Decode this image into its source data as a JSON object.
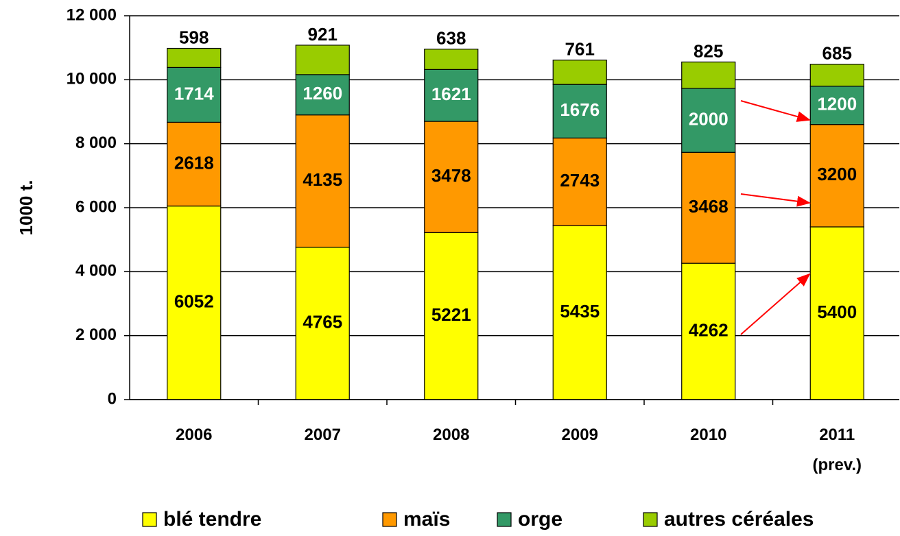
{
  "chart_data": {
    "type": "stacked_bar",
    "y_label": "1000 t.",
    "categories": [
      "2006",
      "2007",
      "2008",
      "2009",
      "2010",
      "2011\n(prev.)"
    ],
    "series": [
      {
        "name": "blé tendre",
        "color": "#ffff00",
        "label_color": "#000000",
        "values": [
          6052,
          4765,
          5221,
          5435,
          4262,
          5400
        ]
      },
      {
        "name": "maïs",
        "color": "#ff9900",
        "label_color": "#000000",
        "values": [
          2618,
          4135,
          3478,
          2743,
          3468,
          3200
        ]
      },
      {
        "name": "orge",
        "color": "#339966",
        "label_color": "#ffffff",
        "values": [
          1714,
          1260,
          1621,
          1676,
          2000,
          1200
        ]
      },
      {
        "name": "autres céréales",
        "color": "#99cc00",
        "label_color": "#000000",
        "values": [
          598,
          921,
          638,
          761,
          825,
          685
        ]
      }
    ],
    "ylim": [
      0,
      12000
    ],
    "yticks": [
      0,
      {
        "value": 2000,
        "label": "2 000"
      },
      {
        "value": 4000,
        "label": "4 000"
      },
      {
        "value": 6000,
        "label": "6 000"
      },
      {
        "value": 8000,
        "label": "8 000"
      },
      {
        "value": 10000,
        "label": "10 000"
      },
      {
        "value": 12000,
        "label": "12 000"
      }
    ],
    "grid": true
  }
}
